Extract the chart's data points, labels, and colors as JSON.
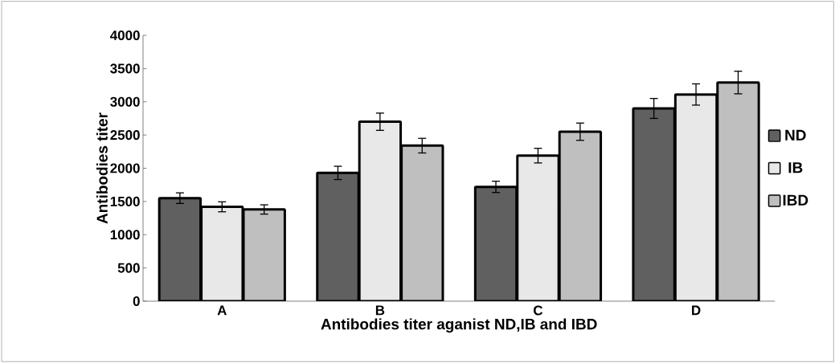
{
  "chart_data": {
    "type": "bar",
    "xlabel": "Antibodies titer aganist ND,IB and IBD",
    "ylabel": "Antibodies titer",
    "categories": [
      "A",
      "B",
      "C",
      "D"
    ],
    "series": [
      {
        "name": "ND",
        "color": "#606060",
        "values": [
          1550,
          1930,
          1720,
          2900
        ],
        "errors": [
          80,
          100,
          85,
          150
        ]
      },
      {
        "name": "IB",
        "color": "#e8e8e8",
        "values": [
          1420,
          2700,
          2190,
          3110
        ],
        "errors": [
          75,
          130,
          110,
          160
        ]
      },
      {
        "name": "IBD",
        "color": "#bfbfbf",
        "values": [
          1380,
          2340,
          2550,
          3290
        ],
        "errors": [
          70,
          110,
          130,
          170
        ]
      }
    ],
    "ylim": [
      0,
      4000
    ],
    "yticks": [
      0,
      500,
      1000,
      1500,
      2000,
      2500,
      3000,
      3500,
      4000
    ],
    "grid": false,
    "legend": "right"
  }
}
